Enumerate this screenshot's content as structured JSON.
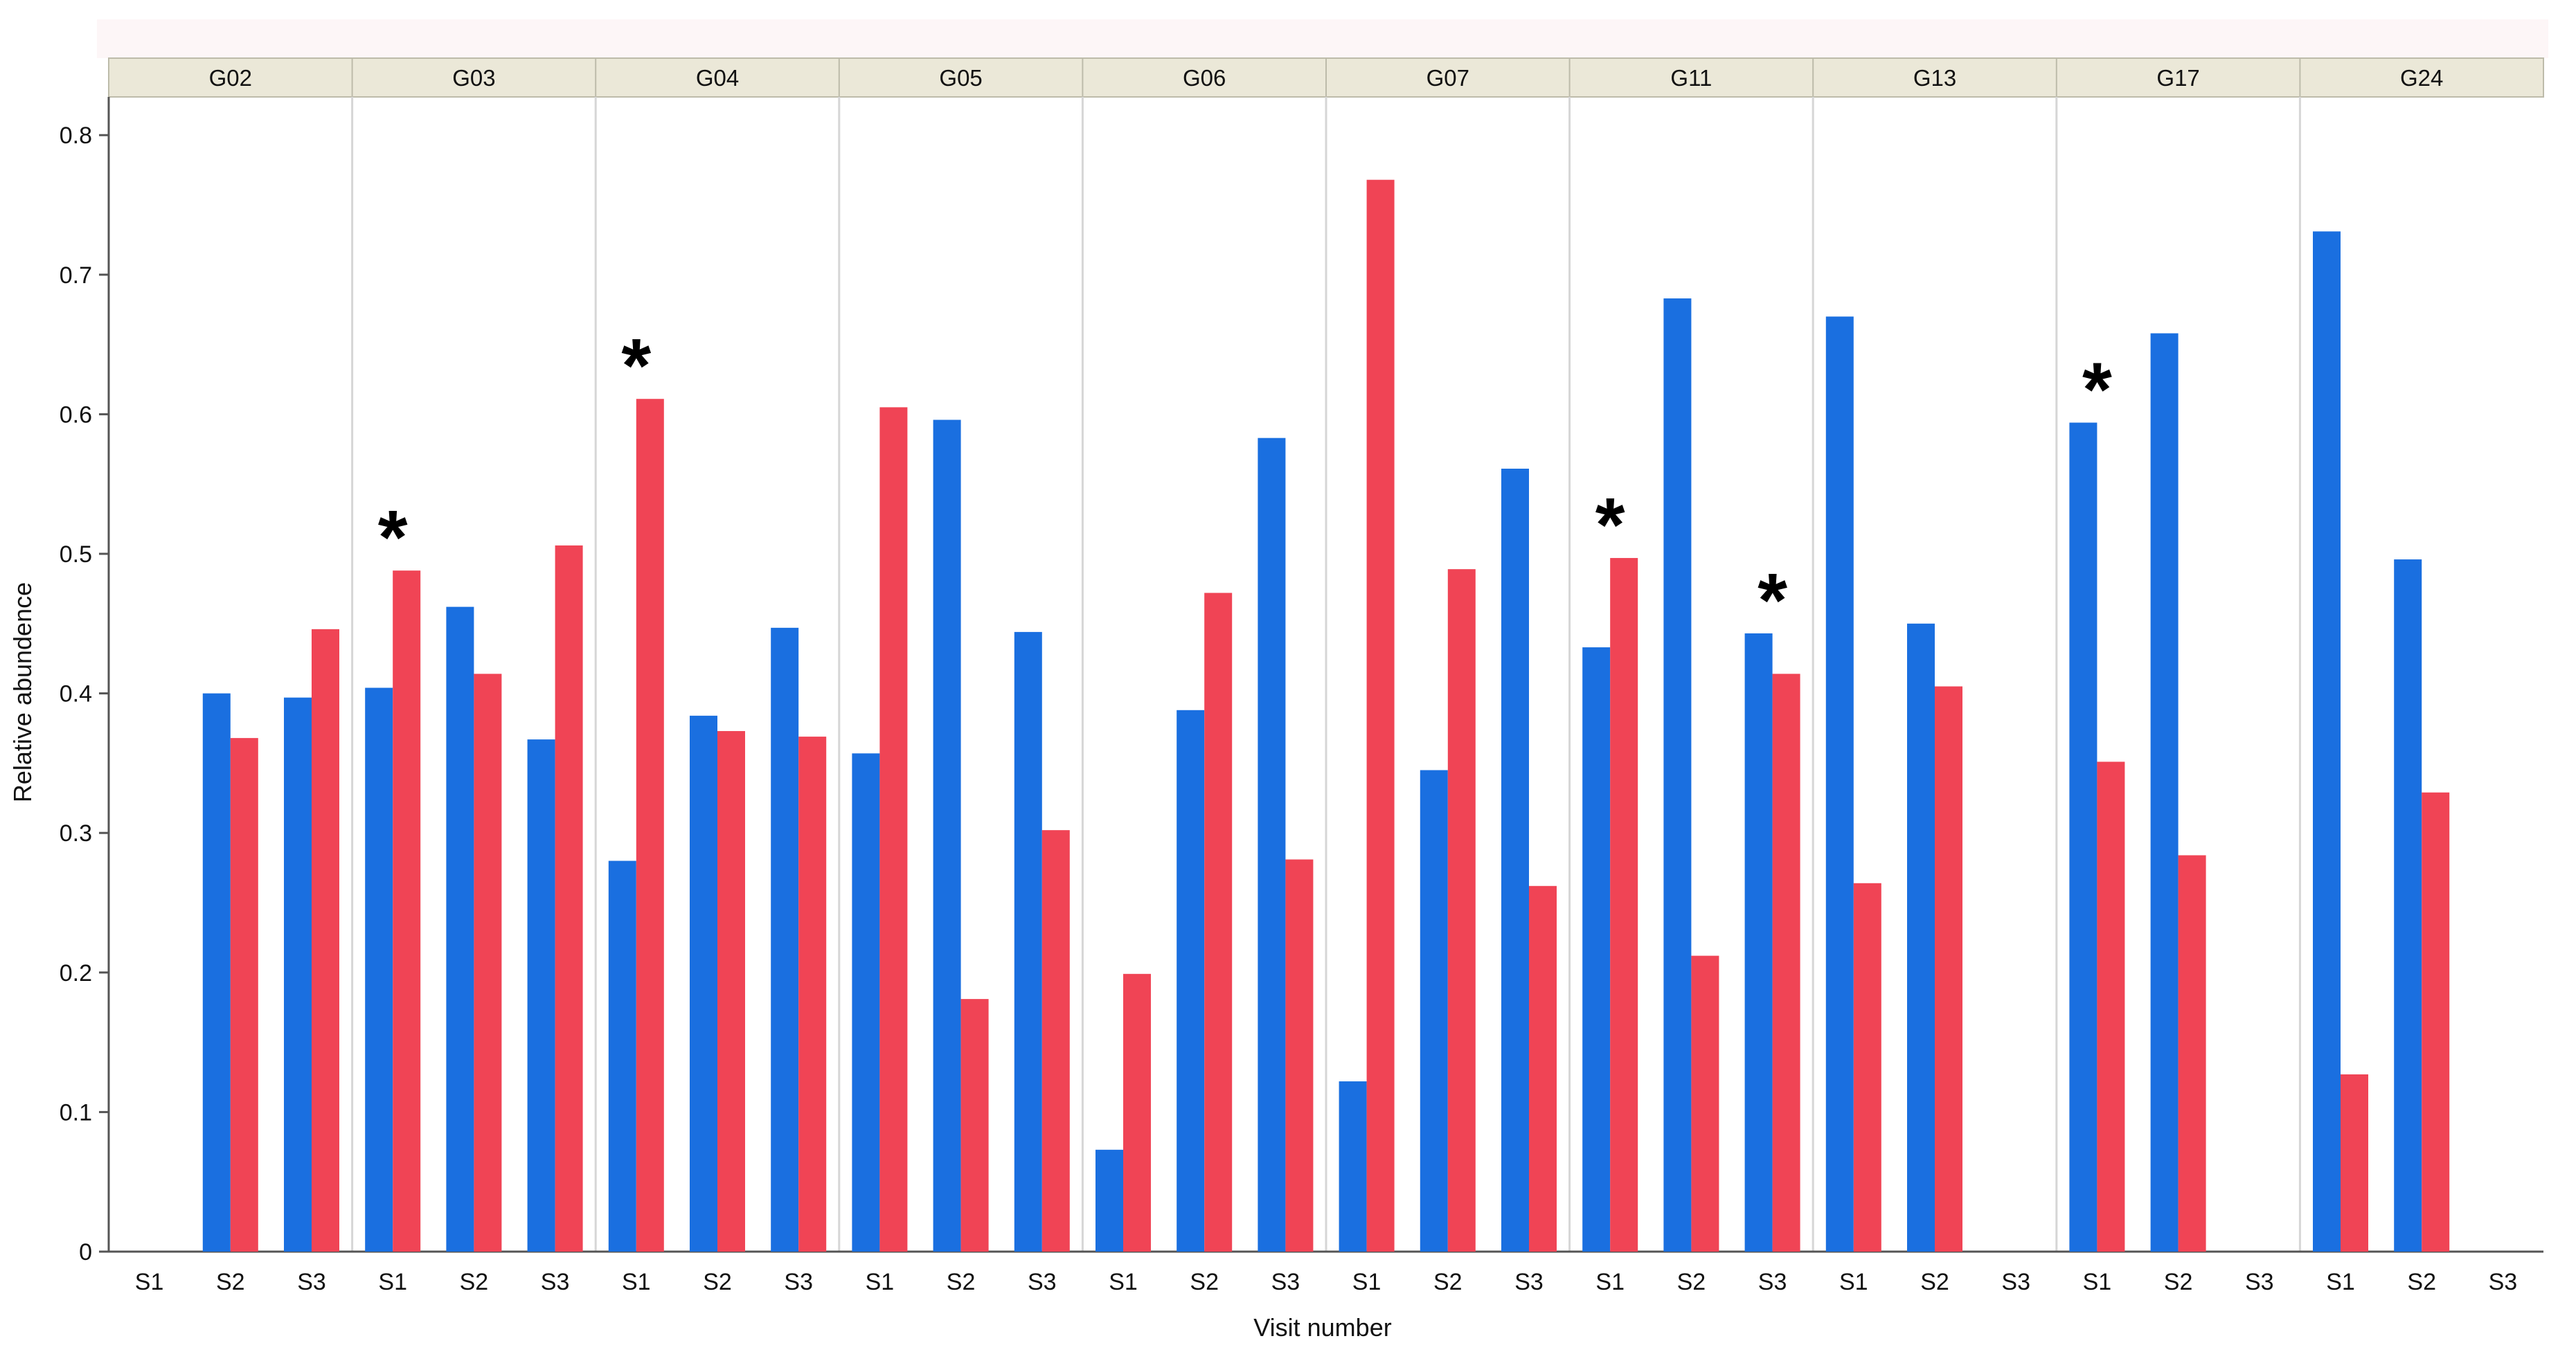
{
  "chart_data": {
    "type": "bar",
    "title": "",
    "xlabel": "Visit number",
    "ylabel": "Relative abundence",
    "ylim": [
      0,
      0.82
    ],
    "yticks": [
      "0",
      "0.1",
      "0.2",
      "0.3",
      "0.4",
      "0.5",
      "0.6",
      "0.7",
      "0.8"
    ],
    "ytick_values": [
      0,
      0.1,
      0.2,
      0.3,
      0.4,
      0.5,
      0.6,
      0.7,
      0.8
    ],
    "visits": [
      "S1",
      "S2",
      "S3"
    ],
    "series_colors": [
      "#1a6fe0",
      "#f04455"
    ],
    "series_names": [
      "blue",
      "red"
    ],
    "annotation_symbol": "*",
    "groups": [
      {
        "name": "G02",
        "blue": [
          null,
          0.4,
          0.397
        ],
        "red": [
          null,
          0.368,
          0.446
        ],
        "stars": [
          false,
          false,
          false
        ]
      },
      {
        "name": "G03",
        "blue": [
          0.404,
          0.462,
          0.367
        ],
        "red": [
          0.488,
          0.414,
          0.506
        ],
        "stars": [
          true,
          false,
          false
        ]
      },
      {
        "name": "G04",
        "blue": [
          0.28,
          0.384,
          0.447
        ],
        "red": [
          0.611,
          0.373,
          0.369
        ],
        "stars": [
          true,
          false,
          false
        ]
      },
      {
        "name": "G05",
        "blue": [
          0.357,
          0.596,
          0.444
        ],
        "red": [
          0.605,
          0.181,
          0.302
        ],
        "stars": [
          false,
          false,
          false
        ]
      },
      {
        "name": "G06",
        "blue": [
          0.073,
          0.388,
          0.583
        ],
        "red": [
          0.199,
          0.472,
          0.281
        ],
        "stars": [
          false,
          false,
          false
        ]
      },
      {
        "name": "G07",
        "blue": [
          0.122,
          0.345,
          0.561
        ],
        "red": [
          0.768,
          0.489,
          0.262
        ],
        "stars": [
          false,
          false,
          false
        ]
      },
      {
        "name": "G11",
        "blue": [
          0.433,
          0.683,
          0.443
        ],
        "red": [
          0.497,
          0.212,
          0.414
        ],
        "stars": [
          true,
          false,
          true
        ]
      },
      {
        "name": "G13",
        "blue": [
          0.67,
          0.45,
          null
        ],
        "red": [
          0.264,
          0.405,
          null
        ],
        "stars": [
          false,
          false,
          false
        ]
      },
      {
        "name": "G17",
        "blue": [
          0.594,
          0.658,
          null
        ],
        "red": [
          0.351,
          0.284,
          null
        ],
        "stars": [
          true,
          false,
          false
        ]
      },
      {
        "name": "G24",
        "blue": [
          0.731,
          0.496,
          null
        ],
        "red": [
          0.127,
          0.329,
          null
        ],
        "stars": [
          false,
          false,
          false
        ]
      }
    ]
  }
}
